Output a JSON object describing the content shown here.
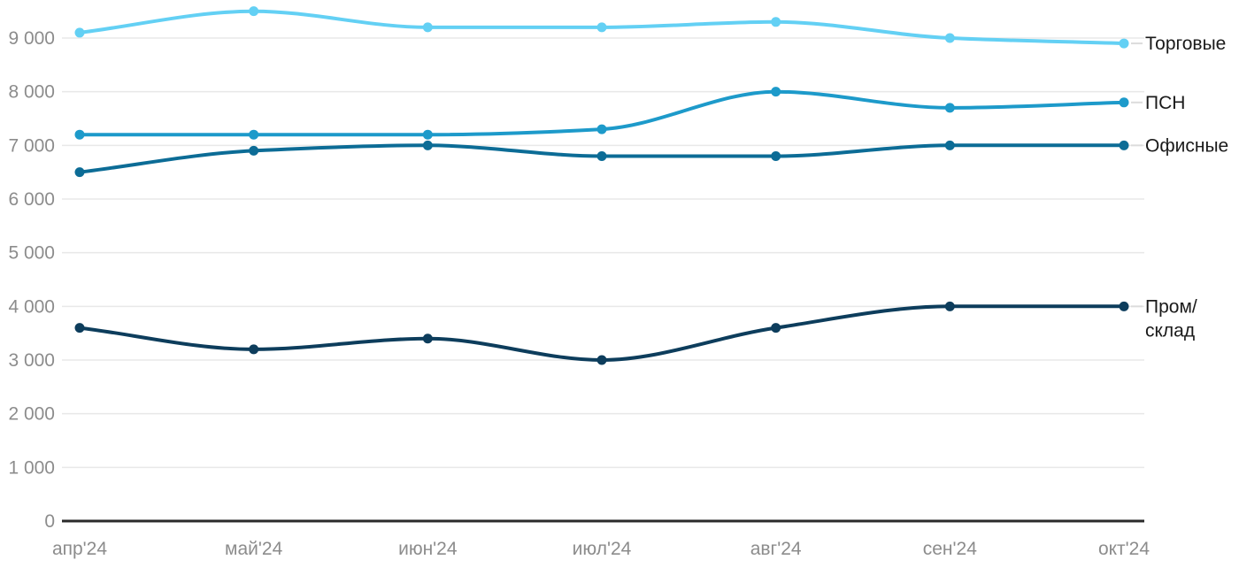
{
  "chart_data": {
    "type": "line",
    "categories": [
      "апр'24",
      "май'24",
      "июн'24",
      "июл'24",
      "авг'24",
      "сен'24",
      "окт'24"
    ],
    "series": [
      {
        "name": "Торговые",
        "label_lines": [
          "Торговые"
        ],
        "color": "#63d0f4",
        "values": [
          9100,
          9500,
          9200,
          9200,
          9300,
          9000,
          8900
        ]
      },
      {
        "name": "ПСН",
        "label_lines": [
          "ПСН"
        ],
        "color": "#1d9aca",
        "values": [
          7200,
          7200,
          7200,
          7300,
          8000,
          7700,
          7800
        ]
      },
      {
        "name": "Офисные",
        "label_lines": [
          "Офисные"
        ],
        "color": "#0c6c96",
        "values": [
          6500,
          6900,
          7000,
          6800,
          6800,
          7000,
          7000
        ]
      },
      {
        "name": "Пром/склад",
        "label_lines": [
          "Пром/",
          "склад"
        ],
        "color": "#0d3d5c",
        "values": [
          3600,
          3200,
          3400,
          3000,
          3600,
          4000,
          4000
        ]
      }
    ],
    "yticks": [
      0,
      1000,
      2000,
      3000,
      4000,
      5000,
      6000,
      7000,
      8000,
      9000
    ],
    "ytick_labels": [
      "0",
      "1 000",
      "2 000",
      "3 000",
      "4 000",
      "5 000",
      "6 000",
      "7 000",
      "8 000",
      "9 000"
    ],
    "ylim": [
      0,
      9600
    ],
    "grid": true,
    "legend_position": "line-end-right",
    "colors": {
      "background": "#ffffff",
      "grid": "#e8e8e8",
      "axis": "#2a2a2a",
      "tick_text": "#8c8c8c",
      "legend_text": "#1a1a1a",
      "connector": "#dcdcdc"
    }
  }
}
